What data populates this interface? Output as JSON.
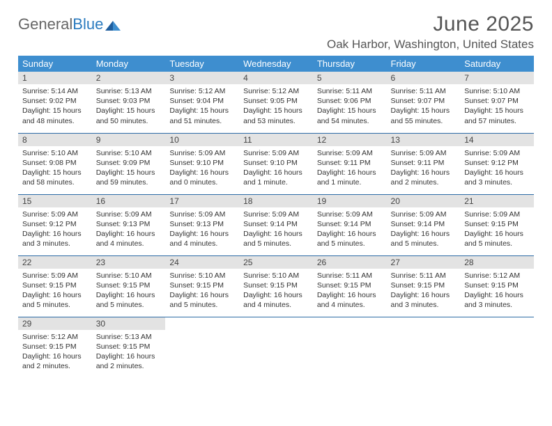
{
  "logo": {
    "text1": "General",
    "text2": "Blue"
  },
  "title": "June 2025",
  "location": "Oak Harbor, Washington, United States",
  "header_bg": "#3e8ecf",
  "daynum_bg": "#e3e3e3",
  "row_border": "#2b6aa5",
  "weekdays": [
    "Sunday",
    "Monday",
    "Tuesday",
    "Wednesday",
    "Thursday",
    "Friday",
    "Saturday"
  ],
  "weeks": [
    [
      {
        "n": "1",
        "sr": "5:14 AM",
        "ss": "9:02 PM",
        "dl": "15 hours and 48 minutes."
      },
      {
        "n": "2",
        "sr": "5:13 AM",
        "ss": "9:03 PM",
        "dl": "15 hours and 50 minutes."
      },
      {
        "n": "3",
        "sr": "5:12 AM",
        "ss": "9:04 PM",
        "dl": "15 hours and 51 minutes."
      },
      {
        "n": "4",
        "sr": "5:12 AM",
        "ss": "9:05 PM",
        "dl": "15 hours and 53 minutes."
      },
      {
        "n": "5",
        "sr": "5:11 AM",
        "ss": "9:06 PM",
        "dl": "15 hours and 54 minutes."
      },
      {
        "n": "6",
        "sr": "5:11 AM",
        "ss": "9:07 PM",
        "dl": "15 hours and 55 minutes."
      },
      {
        "n": "7",
        "sr": "5:10 AM",
        "ss": "9:07 PM",
        "dl": "15 hours and 57 minutes."
      }
    ],
    [
      {
        "n": "8",
        "sr": "5:10 AM",
        "ss": "9:08 PM",
        "dl": "15 hours and 58 minutes."
      },
      {
        "n": "9",
        "sr": "5:10 AM",
        "ss": "9:09 PM",
        "dl": "15 hours and 59 minutes."
      },
      {
        "n": "10",
        "sr": "5:09 AM",
        "ss": "9:10 PM",
        "dl": "16 hours and 0 minutes."
      },
      {
        "n": "11",
        "sr": "5:09 AM",
        "ss": "9:10 PM",
        "dl": "16 hours and 1 minute."
      },
      {
        "n": "12",
        "sr": "5:09 AM",
        "ss": "9:11 PM",
        "dl": "16 hours and 1 minute."
      },
      {
        "n": "13",
        "sr": "5:09 AM",
        "ss": "9:11 PM",
        "dl": "16 hours and 2 minutes."
      },
      {
        "n": "14",
        "sr": "5:09 AM",
        "ss": "9:12 PM",
        "dl": "16 hours and 3 minutes."
      }
    ],
    [
      {
        "n": "15",
        "sr": "5:09 AM",
        "ss": "9:12 PM",
        "dl": "16 hours and 3 minutes."
      },
      {
        "n": "16",
        "sr": "5:09 AM",
        "ss": "9:13 PM",
        "dl": "16 hours and 4 minutes."
      },
      {
        "n": "17",
        "sr": "5:09 AM",
        "ss": "9:13 PM",
        "dl": "16 hours and 4 minutes."
      },
      {
        "n": "18",
        "sr": "5:09 AM",
        "ss": "9:14 PM",
        "dl": "16 hours and 5 minutes."
      },
      {
        "n": "19",
        "sr": "5:09 AM",
        "ss": "9:14 PM",
        "dl": "16 hours and 5 minutes."
      },
      {
        "n": "20",
        "sr": "5:09 AM",
        "ss": "9:14 PM",
        "dl": "16 hours and 5 minutes."
      },
      {
        "n": "21",
        "sr": "5:09 AM",
        "ss": "9:15 PM",
        "dl": "16 hours and 5 minutes."
      }
    ],
    [
      {
        "n": "22",
        "sr": "5:09 AM",
        "ss": "9:15 PM",
        "dl": "16 hours and 5 minutes."
      },
      {
        "n": "23",
        "sr": "5:10 AM",
        "ss": "9:15 PM",
        "dl": "16 hours and 5 minutes."
      },
      {
        "n": "24",
        "sr": "5:10 AM",
        "ss": "9:15 PM",
        "dl": "16 hours and 5 minutes."
      },
      {
        "n": "25",
        "sr": "5:10 AM",
        "ss": "9:15 PM",
        "dl": "16 hours and 4 minutes."
      },
      {
        "n": "26",
        "sr": "5:11 AM",
        "ss": "9:15 PM",
        "dl": "16 hours and 4 minutes."
      },
      {
        "n": "27",
        "sr": "5:11 AM",
        "ss": "9:15 PM",
        "dl": "16 hours and 3 minutes."
      },
      {
        "n": "28",
        "sr": "5:12 AM",
        "ss": "9:15 PM",
        "dl": "16 hours and 3 minutes."
      }
    ],
    [
      {
        "n": "29",
        "sr": "5:12 AM",
        "ss": "9:15 PM",
        "dl": "16 hours and 2 minutes."
      },
      {
        "n": "30",
        "sr": "5:13 AM",
        "ss": "9:15 PM",
        "dl": "16 hours and 2 minutes."
      },
      null,
      null,
      null,
      null,
      null
    ]
  ],
  "labels": {
    "sunrise": "Sunrise: ",
    "sunset": "Sunset: ",
    "daylight": "Daylight: "
  }
}
